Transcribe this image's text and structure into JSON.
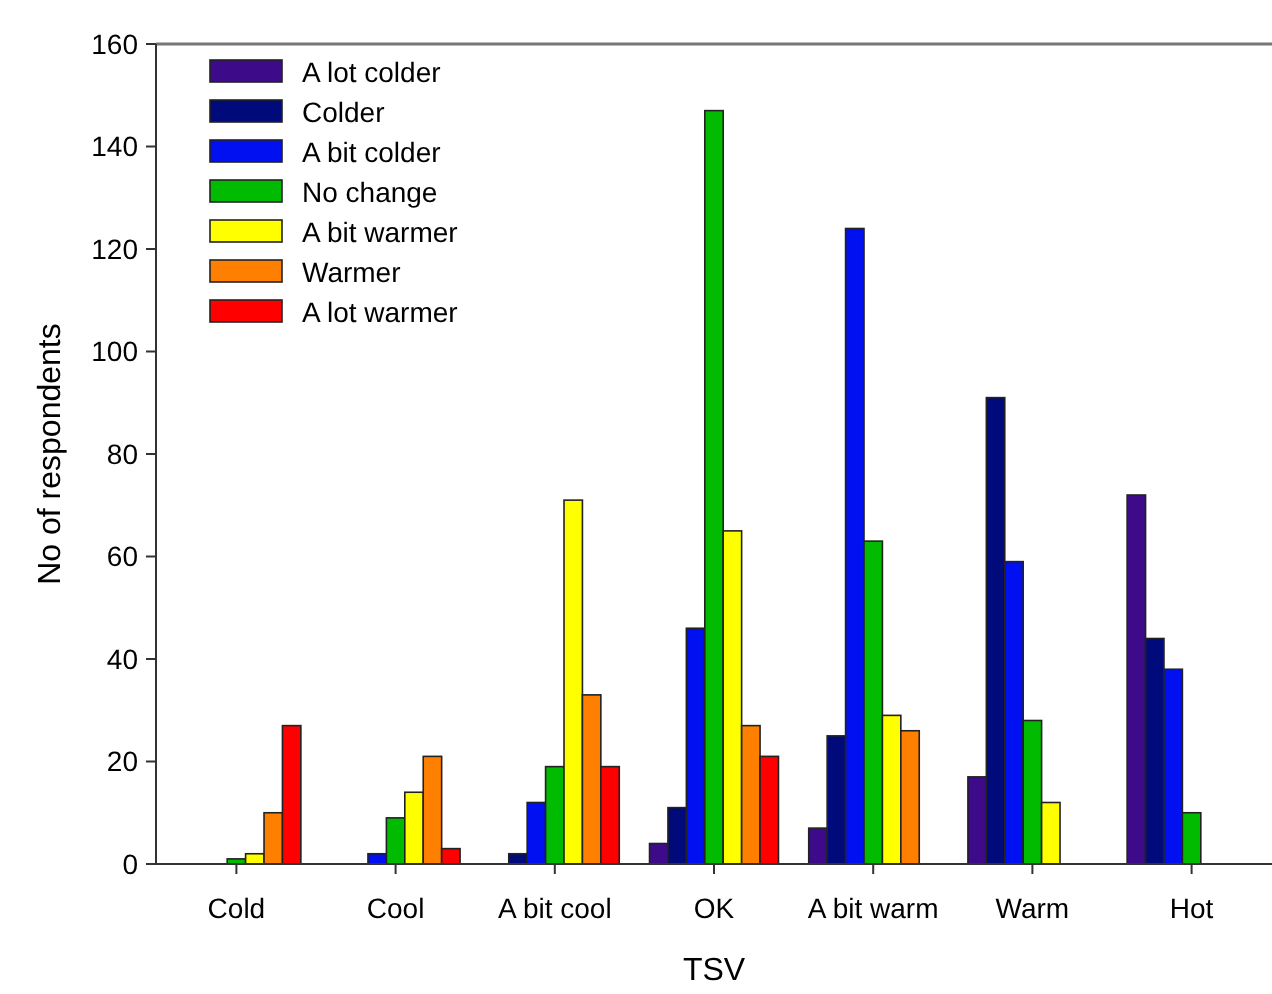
{
  "chart_data": {
    "type": "bar",
    "xlabel": "TSV",
    "ylabel": "No of respondents",
    "categories": [
      "Cold",
      "Cool",
      "A bit cool",
      "OK",
      "A bit warm",
      "Warm",
      "Hot"
    ],
    "series": [
      {
        "name": "A lot colder",
        "color": "#3d0a8a",
        "values": [
          0,
          0,
          0,
          4,
          7,
          17,
          72
        ]
      },
      {
        "name": "Colder",
        "color": "#000a7a",
        "values": [
          0,
          0,
          2,
          11,
          25,
          91,
          44
        ]
      },
      {
        "name": "A bit colder",
        "color": "#0010f0",
        "values": [
          0,
          2,
          12,
          46,
          124,
          59,
          38
        ]
      },
      {
        "name": "No change",
        "color": "#00bb00",
        "values": [
          1,
          9,
          19,
          147,
          63,
          28,
          10
        ]
      },
      {
        "name": "A bit warmer",
        "color": "#ffff00",
        "values": [
          2,
          14,
          71,
          65,
          29,
          12,
          0
        ]
      },
      {
        "name": "Warmer",
        "color": "#ff8000",
        "values": [
          10,
          21,
          33,
          27,
          26,
          0,
          0
        ]
      },
      {
        "name": "A lot warmer",
        "color": "#ff0000",
        "values": [
          27,
          3,
          19,
          21,
          0,
          0,
          0
        ]
      }
    ],
    "ylim": [
      0,
      160
    ],
    "yticks": [
      0,
      20,
      40,
      60,
      80,
      100,
      120,
      140,
      160
    ],
    "legend": "top left",
    "grid": false
  }
}
